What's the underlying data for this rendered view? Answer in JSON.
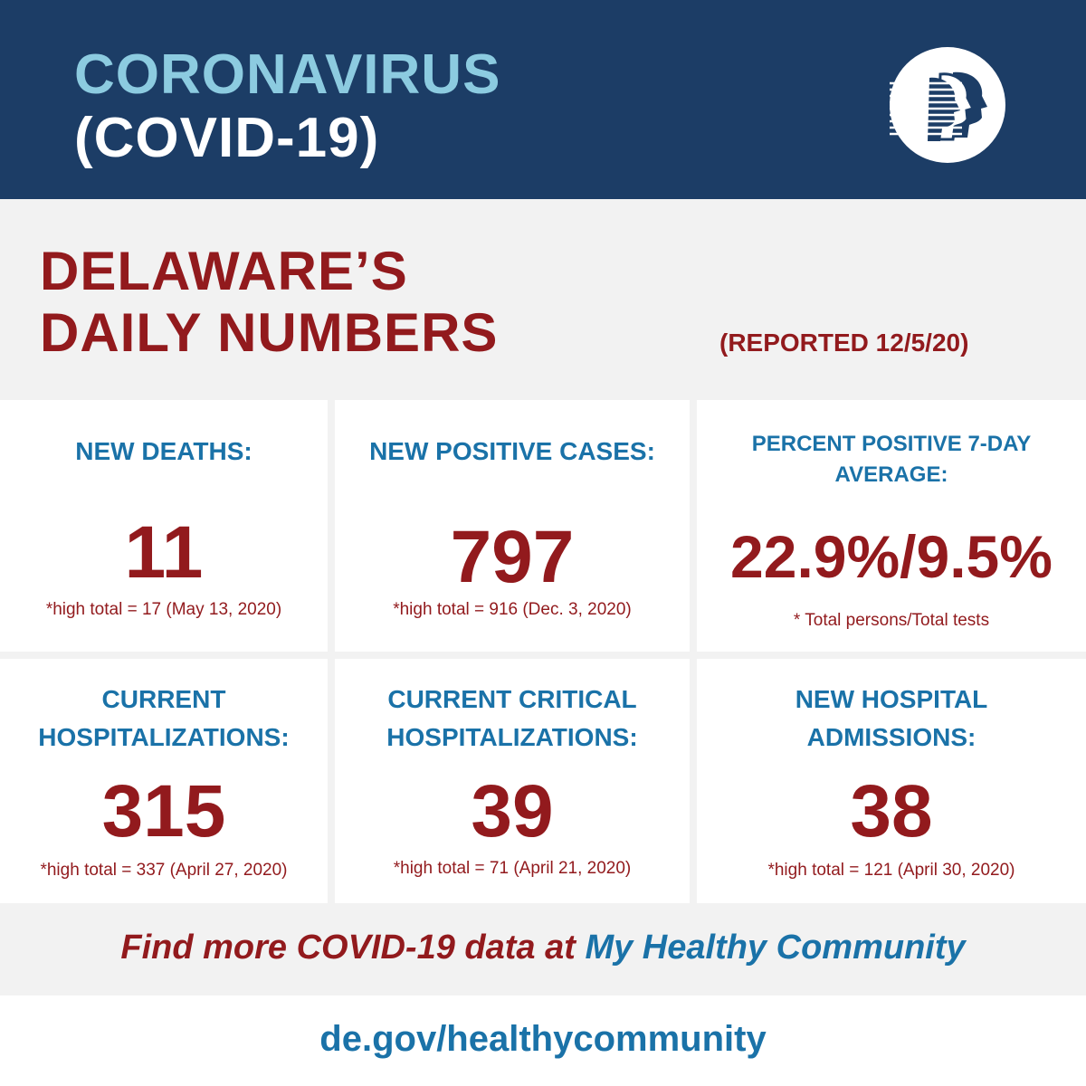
{
  "header": {
    "line1": "CORONAVIRUS",
    "line2": "(COVID-19)",
    "logo_icon": "public-health-heads-logo"
  },
  "title": {
    "line1": "DELAWARE’S",
    "line2": "DAILY NUMBERS",
    "reported": "(REPORTED 12/5/20)"
  },
  "cards": [
    {
      "label_line1": "NEW DEATHS:",
      "label_line2": "",
      "value": "11",
      "note": "*high total = 17 (May 13, 2020)"
    },
    {
      "label_line1": "NEW POSITIVE CASES:",
      "label_line2": "",
      "value": "797",
      "note": "*high total = 916 (Dec. 3, 2020)"
    },
    {
      "label_line1": "PERCENT POSITIVE 7-DAY",
      "label_line2": "AVERAGE:",
      "value": "22.9%/9.5%",
      "note": "* Total persons/Total tests"
    },
    {
      "label_line1": "CURRENT",
      "label_line2": "HOSPITALIZATIONS:",
      "value": "315",
      "note": "*high total = 337 (April 27, 2020)"
    },
    {
      "label_line1": "CURRENT CRITICAL",
      "label_line2": "HOSPITALIZATIONS:",
      "value": "39",
      "note": "*high total = 71 (April 21, 2020)"
    },
    {
      "label_line1": "NEW HOSPITAL",
      "label_line2": "ADMISSIONS:",
      "value": "38",
      "note": "*high total = 121 (April 30, 2020)"
    }
  ],
  "footer": {
    "prefix": "Find more COVID-19 data at ",
    "link_text": "My Healthy Community",
    "url": "de.gov/healthycommunity"
  },
  "colors": {
    "navy": "#1c3d66",
    "light_blue": "#8ccbe0",
    "red": "#921a1d",
    "blue": "#1a72a8",
    "gray": "#f2f2f2"
  }
}
